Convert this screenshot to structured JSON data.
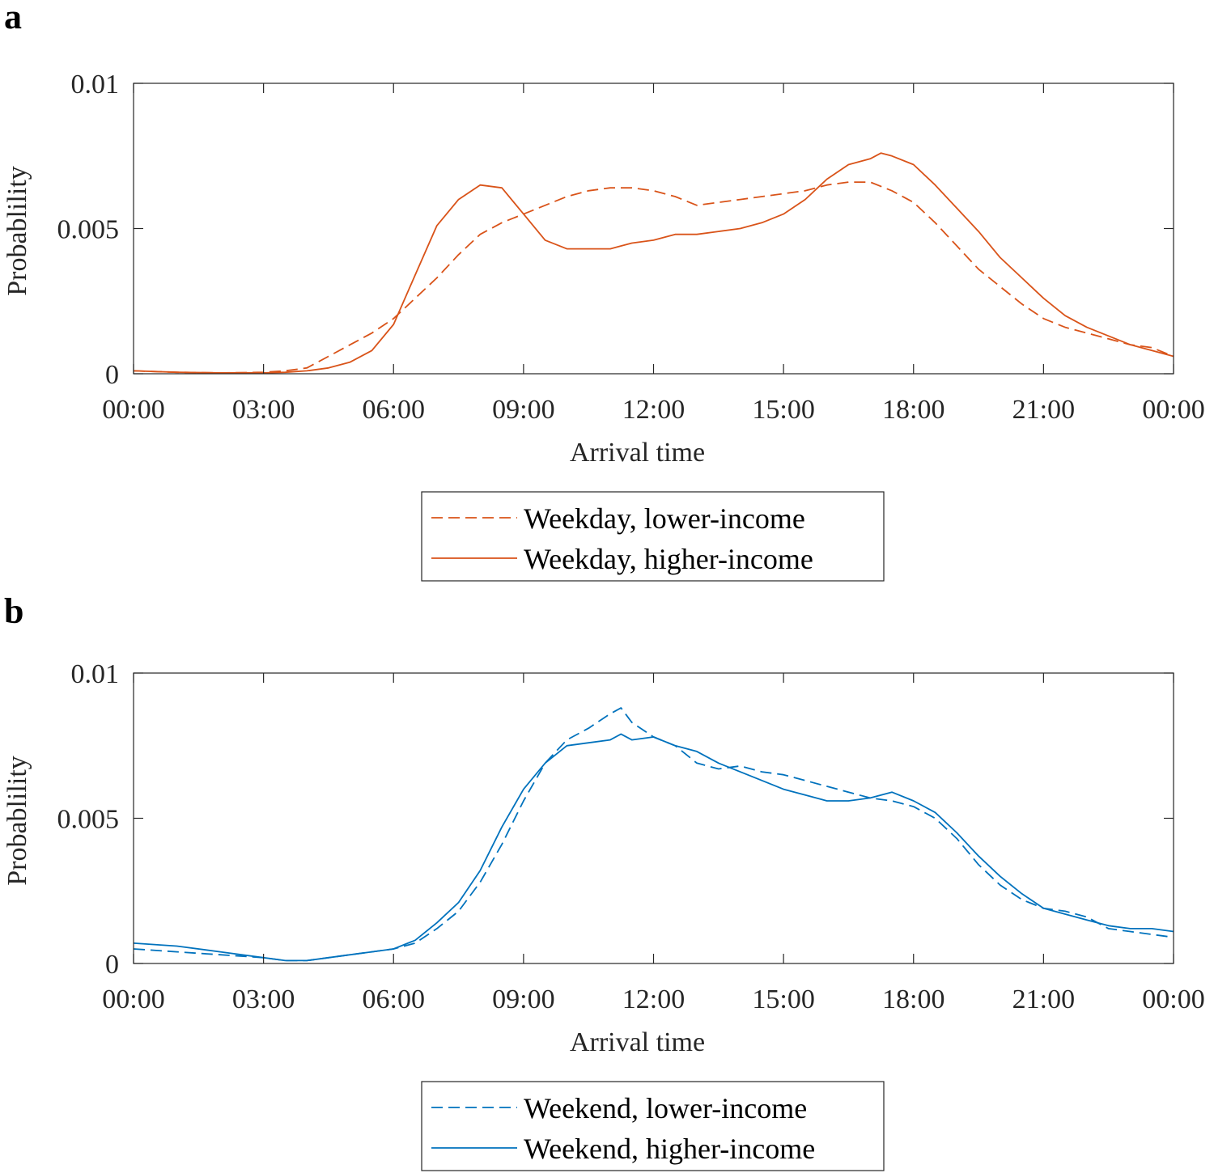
{
  "chart_data": [
    {
      "panel_label": "a",
      "type": "line",
      "xlabel": "Arrival time",
      "ylabel": "Probablility",
      "x_ticks_hours": [
        0,
        3,
        6,
        9,
        12,
        15,
        18,
        21,
        24
      ],
      "x_tick_labels": [
        "00:00",
        "03:00",
        "06:00",
        "09:00",
        "12:00",
        "15:00",
        "18:00",
        "21:00",
        "00:00"
      ],
      "xlim_hours": [
        0,
        24
      ],
      "y_ticks": [
        0,
        0.005,
        0.01
      ],
      "y_tick_labels": [
        "0",
        "0.005",
        "0.01"
      ],
      "ylim": [
        0,
        0.01
      ],
      "grid": false,
      "legend_position": "below",
      "series": [
        {
          "name": "Weekday, lower-income",
          "color": "#D95319",
          "dash": "dashed",
          "x": [
            0,
            1,
            2,
            3,
            3.5,
            4,
            4.5,
            5,
            5.5,
            6,
            6.5,
            7,
            7.5,
            8,
            8.5,
            9,
            9.5,
            10,
            10.5,
            11,
            11.5,
            12,
            12.5,
            13,
            13.5,
            14,
            14.5,
            15,
            15.5,
            16,
            16.5,
            17,
            17.5,
            18,
            18.5,
            19,
            19.5,
            20,
            20.5,
            21,
            21.5,
            22,
            22.5,
            23,
            23.5,
            24
          ],
          "values": [
            0.0001,
            5e-05,
            3e-05,
            5e-05,
            0.0001,
            0.0002,
            0.0006,
            0.001,
            0.0014,
            0.0019,
            0.0026,
            0.0033,
            0.0041,
            0.0048,
            0.0052,
            0.0055,
            0.0058,
            0.0061,
            0.0063,
            0.0064,
            0.0064,
            0.0063,
            0.0061,
            0.0058,
            0.0059,
            0.006,
            0.0061,
            0.0062,
            0.0063,
            0.0065,
            0.0066,
            0.0066,
            0.0063,
            0.0059,
            0.0052,
            0.0044,
            0.0036,
            0.003,
            0.0024,
            0.0019,
            0.0016,
            0.0014,
            0.0012,
            0.001,
            0.0009,
            0.0006
          ]
        },
        {
          "name": "Weekday, higher-income",
          "color": "#D95319",
          "dash": "solid",
          "x": [
            0,
            1,
            2,
            3,
            3.5,
            4,
            4.5,
            5,
            5.5,
            6,
            6.5,
            7,
            7.5,
            8,
            8.5,
            9,
            9.5,
            10,
            10.5,
            11,
            11.5,
            12,
            12.5,
            13,
            13.5,
            14,
            14.5,
            15,
            15.5,
            16,
            16.5,
            17,
            17.25,
            17.5,
            18,
            18.5,
            19,
            19.5,
            20,
            20.5,
            21,
            21.5,
            22,
            22.5,
            23,
            23.5,
            24
          ],
          "values": [
            0.0001,
            5e-05,
            3e-05,
            3e-05,
            5e-05,
            0.0001,
            0.0002,
            0.0004,
            0.0008,
            0.0017,
            0.0034,
            0.0051,
            0.006,
            0.0065,
            0.0064,
            0.0055,
            0.0046,
            0.0043,
            0.0043,
            0.0043,
            0.0045,
            0.0046,
            0.0048,
            0.0048,
            0.0049,
            0.005,
            0.0052,
            0.0055,
            0.006,
            0.0067,
            0.0072,
            0.0074,
            0.0076,
            0.0075,
            0.0072,
            0.0065,
            0.0057,
            0.0049,
            0.004,
            0.0033,
            0.0026,
            0.002,
            0.0016,
            0.0013,
            0.001,
            0.0008,
            0.0006
          ]
        }
      ]
    },
    {
      "panel_label": "b",
      "type": "line",
      "xlabel": "Arrival time",
      "ylabel": "Probablility",
      "x_ticks_hours": [
        0,
        3,
        6,
        9,
        12,
        15,
        18,
        21,
        24
      ],
      "x_tick_labels": [
        "00:00",
        "03:00",
        "06:00",
        "09:00",
        "12:00",
        "15:00",
        "18:00",
        "21:00",
        "00:00"
      ],
      "xlim_hours": [
        0,
        24
      ],
      "y_ticks": [
        0,
        0.005,
        0.01
      ],
      "y_tick_labels": [
        "0",
        "0.005",
        "0.01"
      ],
      "ylim": [
        0,
        0.01
      ],
      "grid": false,
      "legend_position": "below",
      "series": [
        {
          "name": "Weekend, lower-income",
          "color": "#0072BD",
          "dash": "dashed",
          "x": [
            0,
            1,
            2,
            3,
            3.5,
            4,
            4.5,
            5,
            5.5,
            6,
            6.5,
            7,
            7.5,
            8,
            8.5,
            9,
            9.5,
            10,
            10.5,
            11,
            11.25,
            11.5,
            12,
            12.5,
            13,
            13.5,
            14,
            14.5,
            15,
            15.5,
            16,
            16.5,
            17,
            17.5,
            18,
            18.5,
            19,
            19.5,
            20,
            20.5,
            21,
            21.5,
            22,
            22.5,
            23,
            23.5,
            24
          ],
          "values": [
            0.0005,
            0.0004,
            0.0003,
            0.0002,
            0.0001,
            0.0001,
            0.0002,
            0.0003,
            0.0004,
            0.0005,
            0.0007,
            0.0012,
            0.0018,
            0.0028,
            0.0041,
            0.0056,
            0.0069,
            0.0077,
            0.0081,
            0.0086,
            0.0088,
            0.0083,
            0.0078,
            0.0075,
            0.0069,
            0.0067,
            0.0068,
            0.0066,
            0.0065,
            0.0063,
            0.0061,
            0.0059,
            0.0057,
            0.0056,
            0.0054,
            0.005,
            0.0043,
            0.0034,
            0.0027,
            0.0022,
            0.0019,
            0.0018,
            0.0016,
            0.0012,
            0.0011,
            0.001,
            0.0009
          ]
        },
        {
          "name": "Weekend, higher-income",
          "color": "#0072BD",
          "dash": "solid",
          "x": [
            0,
            1,
            2,
            3,
            3.5,
            4,
            4.5,
            5,
            5.5,
            6,
            6.5,
            7,
            7.5,
            8,
            8.5,
            9,
            9.5,
            10,
            10.5,
            11,
            11.25,
            11.5,
            12,
            12.5,
            13,
            13.5,
            14,
            14.5,
            15,
            15.5,
            16,
            16.5,
            17,
            17.5,
            18,
            18.5,
            19,
            19.5,
            20,
            20.5,
            21,
            21.5,
            22,
            22.5,
            23,
            23.5,
            24
          ],
          "values": [
            0.0007,
            0.0006,
            0.0004,
            0.0002,
            0.0001,
            0.0001,
            0.0002,
            0.0003,
            0.0004,
            0.0005,
            0.0008,
            0.0014,
            0.0021,
            0.0032,
            0.0047,
            0.006,
            0.0069,
            0.0075,
            0.0076,
            0.0077,
            0.0079,
            0.0077,
            0.0078,
            0.0075,
            0.0073,
            0.0069,
            0.0066,
            0.0063,
            0.006,
            0.0058,
            0.0056,
            0.0056,
            0.0057,
            0.0059,
            0.0056,
            0.0052,
            0.0045,
            0.0037,
            0.003,
            0.0024,
            0.0019,
            0.0017,
            0.0015,
            0.0013,
            0.0012,
            0.0012,
            0.0011
          ]
        }
      ]
    }
  ]
}
